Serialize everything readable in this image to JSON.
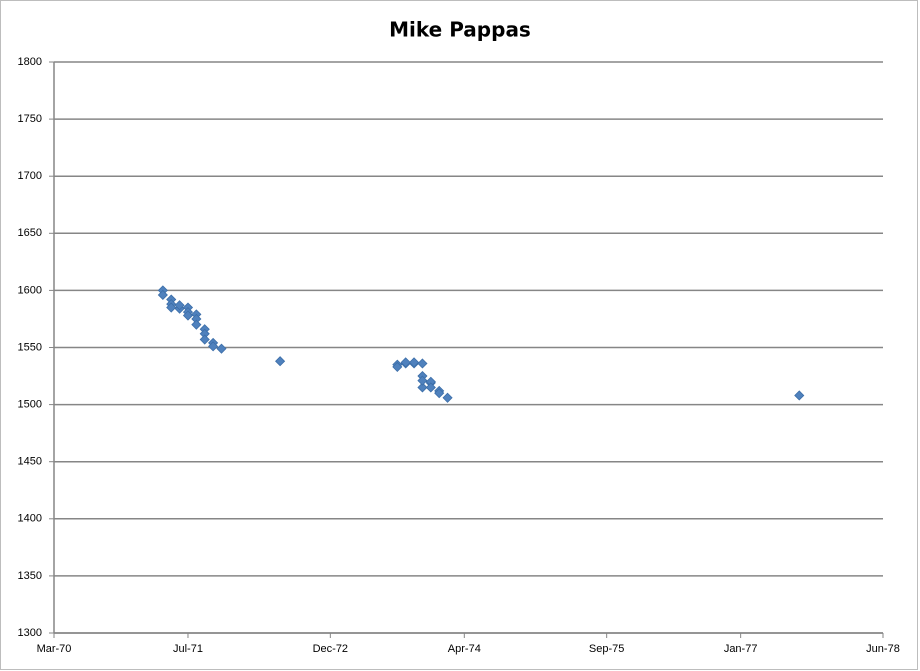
{
  "chart_data": {
    "type": "scatter",
    "title": "Mike Pappas",
    "x": [
      "1971-04",
      "1971-04",
      "1971-05",
      "1971-05",
      "1971-05",
      "1971-06",
      "1971-06",
      "1971-07",
      "1971-07",
      "1971-07",
      "1971-08",
      "1971-08",
      "1971-08",
      "1971-09",
      "1971-09",
      "1971-09",
      "1971-10",
      "1971-10",
      "1971-11",
      "1972-06",
      "1973-08",
      "1973-08",
      "1973-09",
      "1973-09",
      "1973-10",
      "1973-10",
      "1973-11",
      "1973-11",
      "1973-11",
      "1973-11",
      "1973-12",
      "1973-12",
      "1973-12",
      "1974-01",
      "1974-01",
      "1974-02",
      "1977-08"
    ],
    "series": [
      {
        "color": "#4f81bd",
        "values": [
          1600,
          1596,
          1592,
          1588,
          1585,
          1584,
          1587,
          1585,
          1581,
          1578,
          1579,
          1575,
          1570,
          1566,
          1562,
          1557,
          1554,
          1551,
          1549,
          1538,
          1535,
          1533,
          1536,
          1537,
          1536,
          1537,
          1536,
          1525,
          1515,
          1521,
          1519,
          1520,
          1515,
          1512,
          1510,
          1506,
          1508
        ]
      }
    ],
    "xlim": [
      "1970-03",
      "1978-06"
    ],
    "xticks": [
      {
        "value": "1970-03",
        "label": "Mar-70"
      },
      {
        "value": "1971-07",
        "label": "Jul-71"
      },
      {
        "value": "1972-12",
        "label": "Dec-72"
      },
      {
        "value": "1974-04",
        "label": "Apr-74"
      },
      {
        "value": "1975-09",
        "label": "Sep-75"
      },
      {
        "value": "1977-01",
        "label": "Jan-77"
      },
      {
        "value": "1978-06",
        "label": "Jun-78"
      }
    ],
    "ylim": [
      1300,
      1800
    ],
    "yticks": [
      1300,
      1350,
      1400,
      1450,
      1500,
      1550,
      1600,
      1650,
      1700,
      1750,
      1800
    ],
    "grid": true
  }
}
